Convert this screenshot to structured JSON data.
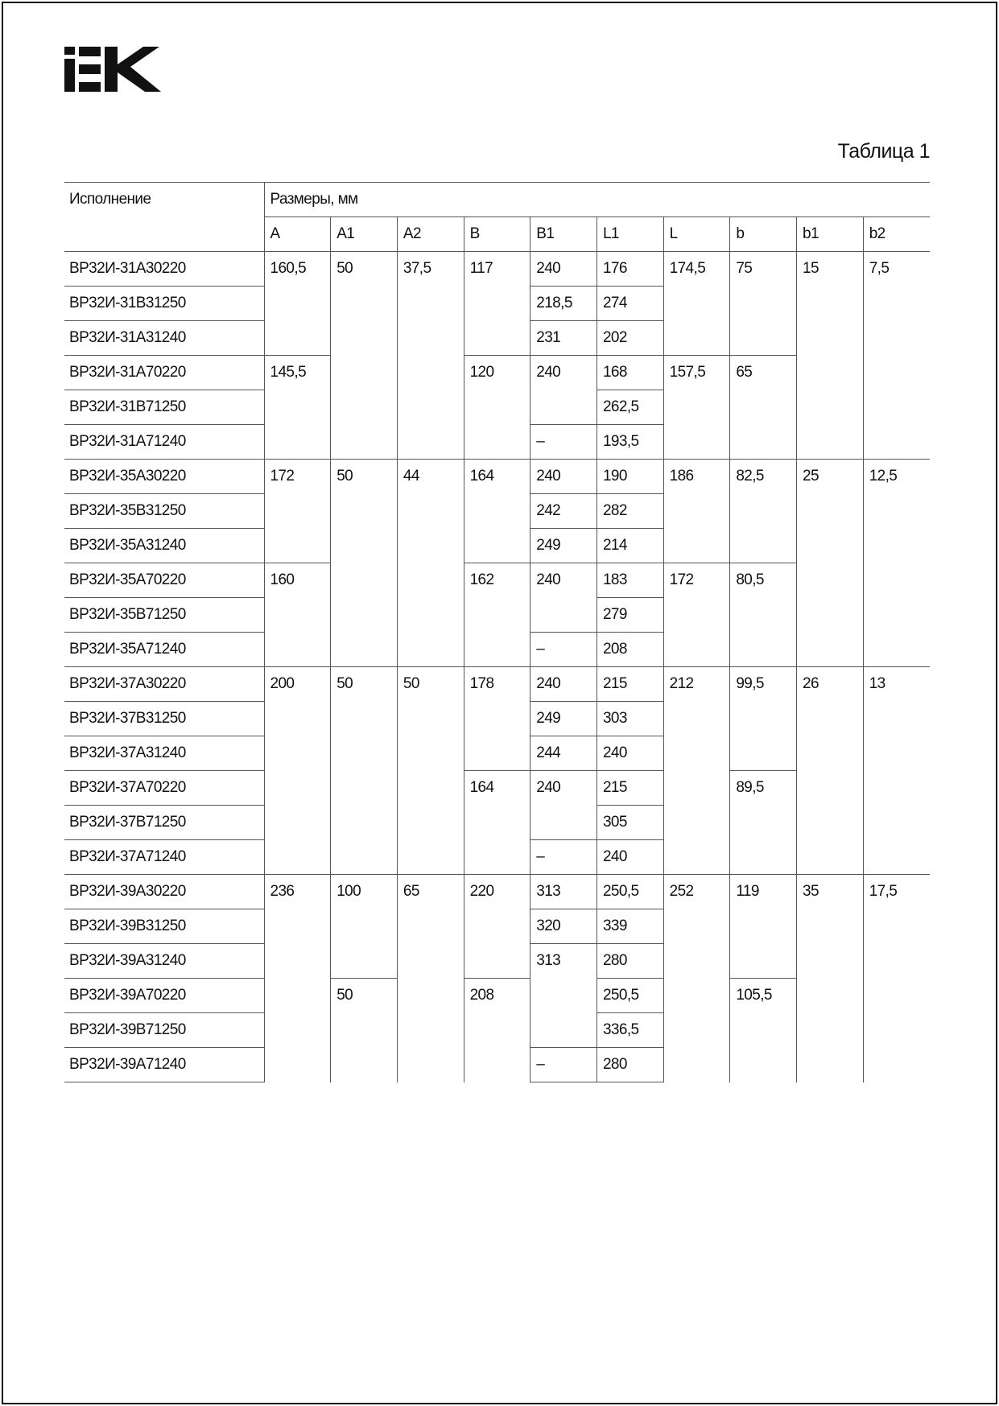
{
  "logo_text": "IEK",
  "caption": "Таблица 1",
  "header": {
    "variant": "Исполнение",
    "dimensions": "Размеры, мм",
    "columns": [
      "A",
      "A1",
      "A2",
      "B",
      "B1",
      "L1",
      "L",
      "b",
      "b1",
      "b2"
    ]
  },
  "groups": [
    {
      "rows": [
        "ВР32И-31А30220",
        "ВР32И-31В31250",
        "ВР32И-31А31240",
        "ВР32И-31А70220",
        "ВР32И-31В71250",
        "ВР32И-31А71240"
      ],
      "cols": [
        [
          [
            "160,5",
            3
          ],
          [
            "145,5",
            3
          ]
        ],
        [
          [
            "50",
            6
          ]
        ],
        [
          [
            "37,5",
            6
          ]
        ],
        [
          [
            "117",
            3
          ],
          [
            "120",
            3
          ]
        ],
        [
          [
            "240",
            1
          ],
          [
            "218,5",
            1
          ],
          [
            "231",
            1
          ],
          [
            "240",
            2
          ],
          [
            "–",
            1
          ]
        ],
        [
          [
            "176",
            1
          ],
          [
            "274",
            1
          ],
          [
            "202",
            1
          ],
          [
            "168",
            1
          ],
          [
            "262,5",
            1
          ],
          [
            "193,5",
            1
          ]
        ],
        [
          [
            "174,5",
            3
          ],
          [
            "157,5",
            3
          ]
        ],
        [
          [
            "75",
            3
          ],
          [
            "65",
            3
          ]
        ],
        [
          [
            "15",
            6
          ]
        ],
        [
          [
            "7,5",
            6
          ]
        ]
      ]
    },
    {
      "rows": [
        "ВР32И-35А30220",
        "ВР32И-35В31250",
        "ВР32И-35А31240",
        "ВР32И-35А70220",
        "ВР32И-35В71250",
        "ВР32И-35А71240"
      ],
      "cols": [
        [
          [
            "172",
            3
          ],
          [
            "160",
            3
          ]
        ],
        [
          [
            "50",
            6
          ]
        ],
        [
          [
            "44",
            6
          ]
        ],
        [
          [
            "164",
            3
          ],
          [
            "162",
            3
          ]
        ],
        [
          [
            "240",
            1
          ],
          [
            "242",
            1
          ],
          [
            "249",
            1
          ],
          [
            "240",
            2
          ],
          [
            "–",
            1
          ]
        ],
        [
          [
            "190",
            1
          ],
          [
            "282",
            1
          ],
          [
            "214",
            1
          ],
          [
            "183",
            1
          ],
          [
            "279",
            1
          ],
          [
            "208",
            1
          ]
        ],
        [
          [
            "186",
            3
          ],
          [
            "172",
            3
          ]
        ],
        [
          [
            "82,5",
            3
          ],
          [
            "80,5",
            3
          ]
        ],
        [
          [
            "25",
            6
          ]
        ],
        [
          [
            "12,5",
            6
          ]
        ]
      ]
    },
    {
      "rows": [
        "ВР32И-37А30220",
        "ВР32И-37В31250",
        "ВР32И-37А31240",
        "ВР32И-37А70220",
        "ВР32И-37В71250",
        "ВР32И-37А71240"
      ],
      "cols": [
        [
          [
            "200",
            6
          ]
        ],
        [
          [
            "50",
            6
          ]
        ],
        [
          [
            "50",
            6
          ]
        ],
        [
          [
            "178",
            3
          ],
          [
            "164",
            3
          ]
        ],
        [
          [
            "240",
            1
          ],
          [
            "249",
            1
          ],
          [
            "244",
            1
          ],
          [
            "240",
            2
          ],
          [
            "–",
            1
          ]
        ],
        [
          [
            "215",
            1
          ],
          [
            "303",
            1
          ],
          [
            "240",
            1
          ],
          [
            "215",
            1
          ],
          [
            "305",
            1
          ],
          [
            "240",
            1
          ]
        ],
        [
          [
            "212",
            6
          ]
        ],
        [
          [
            "99,5",
            3
          ],
          [
            "89,5",
            3
          ]
        ],
        [
          [
            "26",
            6
          ]
        ],
        [
          [
            "13",
            6
          ]
        ]
      ]
    },
    {
      "rows": [
        "ВР32И-39А30220",
        "ВР32И-39В31250",
        "ВР32И-39А31240",
        "ВР32И-39А70220",
        "ВР32И-39В71250",
        "ВР32И-39А71240"
      ],
      "cols": [
        [
          [
            "236",
            6
          ]
        ],
        [
          [
            "100",
            3
          ],
          [
            "50",
            3
          ]
        ],
        [
          [
            "65",
            6
          ]
        ],
        [
          [
            "220",
            3
          ],
          [
            "208",
            3
          ]
        ],
        [
          [
            "313",
            1
          ],
          [
            "320",
            1
          ],
          [
            "313",
            3
          ],
          [
            "–",
            1
          ]
        ],
        [
          [
            "250,5",
            1
          ],
          [
            "339",
            1
          ],
          [
            "280",
            1
          ],
          [
            "250,5",
            1
          ],
          [
            "336,5",
            1
          ],
          [
            "280",
            1
          ]
        ],
        [
          [
            "252",
            6
          ]
        ],
        [
          [
            "119",
            3
          ],
          [
            "105,5",
            3
          ]
        ],
        [
          [
            "35",
            6
          ]
        ],
        [
          [
            "17,5",
            6
          ]
        ]
      ]
    }
  ]
}
